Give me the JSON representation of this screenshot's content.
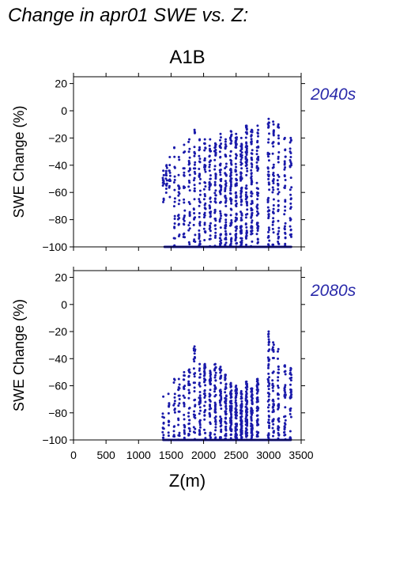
{
  "page_title": "Change in apr01 SWE vs. Z:",
  "scenario_label": "A1B",
  "colors": {
    "points": "#1a1aaa",
    "period_label": "#2a2aaa",
    "axes": "#000000"
  },
  "chart_data": [
    {
      "type": "scatter",
      "period": "2040s",
      "title": "",
      "xlabel": "",
      "ylabel": "SWE Change (%)",
      "xlim": [
        0,
        3500
      ],
      "ylim": [
        -100,
        25
      ],
      "x_ticks": [
        0,
        500,
        1000,
        1500,
        2000,
        2500,
        3000,
        3500
      ],
      "y_ticks": [
        -100,
        -80,
        -60,
        -40,
        -20,
        0,
        20
      ],
      "show_x_tick_labels": false,
      "columns": [
        {
          "x": 1380,
          "y_min": -70,
          "y_max": -44,
          "density": 0.3
        },
        {
          "x": 1430,
          "y_min": -64,
          "y_max": -40,
          "density": 0.4
        },
        {
          "x": 1480,
          "y_min": -64,
          "y_max": -34,
          "density": 0.3
        },
        {
          "x": 1550,
          "y_min": -100,
          "y_max": -27,
          "density": 0.5
        },
        {
          "x": 1620,
          "y_min": -100,
          "y_max": -34,
          "density": 0.5
        },
        {
          "x": 1700,
          "y_min": -100,
          "y_max": -25,
          "density": 0.6
        },
        {
          "x": 1780,
          "y_min": -100,
          "y_max": -21,
          "density": 0.7
        },
        {
          "x": 1860,
          "y_min": -100,
          "y_max": -14,
          "density": 0.8
        },
        {
          "x": 1940,
          "y_min": -100,
          "y_max": -21,
          "density": 0.9
        },
        {
          "x": 2020,
          "y_min": -100,
          "y_max": -21,
          "density": 1.0
        },
        {
          "x": 2100,
          "y_min": -100,
          "y_max": -21,
          "density": 1.1
        },
        {
          "x": 2180,
          "y_min": -100,
          "y_max": -24,
          "density": 1.2
        },
        {
          "x": 2260,
          "y_min": -100,
          "y_max": -17,
          "density": 1.3
        },
        {
          "x": 2340,
          "y_min": -100,
          "y_max": -21,
          "density": 1.4
        },
        {
          "x": 2420,
          "y_min": -100,
          "y_max": -15,
          "density": 1.6
        },
        {
          "x": 2500,
          "y_min": -100,
          "y_max": -17,
          "density": 1.8
        },
        {
          "x": 2580,
          "y_min": -100,
          "y_max": -20,
          "density": 1.8
        },
        {
          "x": 2660,
          "y_min": -100,
          "y_max": -11,
          "density": 1.8
        },
        {
          "x": 2740,
          "y_min": -100,
          "y_max": -14,
          "density": 1.7
        },
        {
          "x": 2830,
          "y_min": -100,
          "y_max": -11,
          "density": 1.4
        },
        {
          "x": 3000,
          "y_min": -100,
          "y_max": -6,
          "density": 1.2
        },
        {
          "x": 3070,
          "y_min": -100,
          "y_max": -8,
          "density": 1.0
        },
        {
          "x": 3150,
          "y_min": -100,
          "y_max": -10,
          "density": 0.9
        },
        {
          "x": 3250,
          "y_min": -100,
          "y_max": -20,
          "density": 0.8
        },
        {
          "x": 3340,
          "y_min": -100,
          "y_max": -20,
          "density": 0.8
        }
      ],
      "floor_points": {
        "y": -100,
        "x_min": 1400,
        "x_max": 3350
      }
    },
    {
      "type": "scatter",
      "period": "2080s",
      "title": "",
      "xlabel": "Z(m)",
      "ylabel": "SWE Change (%)",
      "xlim": [
        0,
        3500
      ],
      "ylim": [
        -100,
        25
      ],
      "x_ticks": [
        0,
        500,
        1000,
        1500,
        2000,
        2500,
        3000,
        3500
      ],
      "y_ticks": [
        -100,
        -80,
        -60,
        -40,
        -20,
        0,
        20
      ],
      "show_x_tick_labels": true,
      "columns": [
        {
          "x": 1380,
          "y_min": -100,
          "y_max": -68,
          "density": 0.3
        },
        {
          "x": 1460,
          "y_min": -100,
          "y_max": -66,
          "density": 0.3
        },
        {
          "x": 1550,
          "y_min": -100,
          "y_max": -55,
          "density": 0.4
        },
        {
          "x": 1620,
          "y_min": -100,
          "y_max": -55,
          "density": 0.5
        },
        {
          "x": 1700,
          "y_min": -100,
          "y_max": -50,
          "density": 0.6
        },
        {
          "x": 1780,
          "y_min": -100,
          "y_max": -48,
          "density": 0.7
        },
        {
          "x": 1860,
          "y_min": -100,
          "y_max": -31,
          "density": 0.8
        },
        {
          "x": 1940,
          "y_min": -100,
          "y_max": -44,
          "density": 0.9
        },
        {
          "x": 2020,
          "y_min": -100,
          "y_max": -44,
          "density": 1.0
        },
        {
          "x": 2100,
          "y_min": -100,
          "y_max": -49,
          "density": 1.0
        },
        {
          "x": 2180,
          "y_min": -100,
          "y_max": -44,
          "density": 1.1
        },
        {
          "x": 2260,
          "y_min": -100,
          "y_max": -46,
          "density": 1.2
        },
        {
          "x": 2340,
          "y_min": -100,
          "y_max": -52,
          "density": 1.3
        },
        {
          "x": 2420,
          "y_min": -100,
          "y_max": -58,
          "density": 1.5
        },
        {
          "x": 2500,
          "y_min": -100,
          "y_max": -60,
          "density": 1.6
        },
        {
          "x": 2580,
          "y_min": -100,
          "y_max": -64,
          "density": 1.6
        },
        {
          "x": 2660,
          "y_min": -100,
          "y_max": -57,
          "density": 1.6
        },
        {
          "x": 2740,
          "y_min": -100,
          "y_max": -62,
          "density": 1.5
        },
        {
          "x": 2830,
          "y_min": -100,
          "y_max": -55,
          "density": 1.3
        },
        {
          "x": 3000,
          "y_min": -100,
          "y_max": -20,
          "density": 1.2
        },
        {
          "x": 3070,
          "y_min": -100,
          "y_max": -28,
          "density": 1.0
        },
        {
          "x": 3150,
          "y_min": -100,
          "y_max": -33,
          "density": 0.9
        },
        {
          "x": 3250,
          "y_min": -100,
          "y_max": -45,
          "density": 0.8
        },
        {
          "x": 3340,
          "y_min": -100,
          "y_max": -47,
          "density": 0.8
        }
      ],
      "floor_points": {
        "y": -100,
        "x_min": 1380,
        "x_max": 3350
      }
    }
  ]
}
